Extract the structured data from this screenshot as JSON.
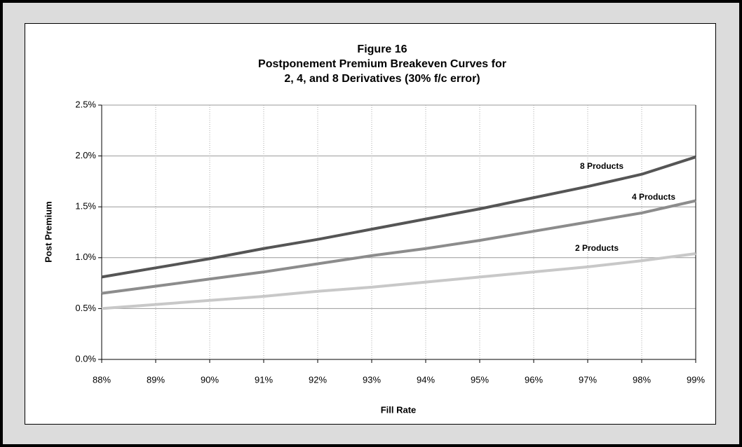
{
  "chart_data": {
    "type": "line",
    "title": [
      "Figure 16",
      "Postponement Premium Breakeven Curves for",
      "2, 4, and 8 Derivatives (30% f/c error)"
    ],
    "xlabel": "Fill Rate",
    "ylabel": "Post Premium",
    "x": [
      88,
      89,
      90,
      91,
      92,
      93,
      94,
      95,
      96,
      97,
      98,
      99
    ],
    "series": [
      {
        "name": "8 Products",
        "color": "#555555",
        "values": [
          0.81,
          0.9,
          0.99,
          1.09,
          1.18,
          1.28,
          1.38,
          1.48,
          1.59,
          1.7,
          1.82,
          1.99
        ]
      },
      {
        "name": "4 Products",
        "color": "#8c8c8c",
        "values": [
          0.65,
          0.72,
          0.79,
          0.86,
          0.94,
          1.02,
          1.09,
          1.17,
          1.26,
          1.35,
          1.44,
          1.56
        ]
      },
      {
        "name": "2 Products",
        "color": "#c8c8c8",
        "values": [
          0.5,
          0.54,
          0.58,
          0.62,
          0.67,
          0.71,
          0.76,
          0.81,
          0.86,
          0.91,
          0.97,
          1.04
        ]
      }
    ],
    "xlim": [
      88,
      99
    ],
    "xticks": [
      {
        "value": 88,
        "label": "88%"
      },
      {
        "value": 89,
        "label": "89%"
      },
      {
        "value": 90,
        "label": "90%"
      },
      {
        "value": 91,
        "label": "91%"
      },
      {
        "value": 92,
        "label": "92%"
      },
      {
        "value": 93,
        "label": "93%"
      },
      {
        "value": 94,
        "label": "94%"
      },
      {
        "value": 95,
        "label": "95%"
      },
      {
        "value": 96,
        "label": "96%"
      },
      {
        "value": 97,
        "label": "97%"
      },
      {
        "value": 98,
        "label": "98%"
      },
      {
        "value": 99,
        "label": "99%"
      }
    ],
    "ylim": [
      0,
      2.5
    ],
    "yticks": [
      {
        "value": 0,
        "label": "0.0%"
      },
      {
        "value": 0.5,
        "label": "0.5%"
      },
      {
        "value": 1,
        "label": "1.0%"
      },
      {
        "value": 1.5,
        "label": "1.5%"
      },
      {
        "value": 2,
        "label": "2.0%"
      },
      {
        "value": 2.5,
        "label": "2.5%"
      }
    ],
    "grid": true
  }
}
